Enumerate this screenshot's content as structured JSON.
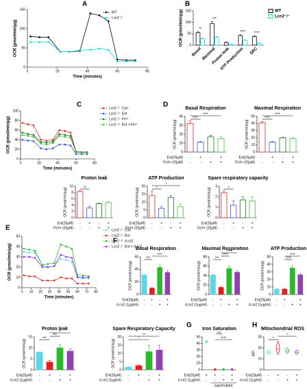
{
  "chart_data": [
    {
      "type": "line",
      "panel": "A",
      "xlabel": "Time (minutes)",
      "ylabel": "OCR (pmol/min/μg)",
      "xlim": [
        0,
        80
      ],
      "xticks": [
        0,
        20,
        40,
        60,
        80
      ],
      "ylim": [
        0,
        150
      ],
      "yticks": [
        0,
        50,
        100,
        150
      ],
      "legend": "upper right",
      "x": [
        2,
        8,
        14,
        22,
        28,
        35,
        42,
        48,
        54,
        60,
        66,
        72
      ],
      "series": [
        {
          "name": "WT",
          "color": "#000000",
          "values": [
            80,
            78,
            78,
            40,
            40,
            42,
            140,
            135,
            120,
            20,
            18,
            18
          ]
        },
        {
          "name": "Lcn2⁻/⁻",
          "color": "#00d8e8",
          "values": [
            65,
            65,
            66,
            40,
            40,
            44,
            45,
            48,
            45,
            15,
            15,
            15
          ]
        }
      ]
    },
    {
      "type": "bar",
      "panel": "B",
      "ylabel": "OCR (pmol/min/μg)",
      "ylim": [
        0,
        150
      ],
      "yticks": [
        0,
        50,
        100,
        150
      ],
      "legend": "upper right",
      "bar_style": "outline",
      "categories": [
        "Basal",
        "Maximal",
        "Proton leak",
        "ATP Production",
        "SRC"
      ],
      "series": [
        {
          "name": "WT",
          "color": "#000000",
          "values": [
            55,
            95,
            12,
            42,
            38
          ],
          "errors": [
            5,
            8,
            2,
            4,
            4
          ]
        },
        {
          "name": "Lcn2⁻/⁻",
          "color": "#00d8e8",
          "values": [
            28,
            35,
            5,
            22,
            8
          ],
          "errors": [
            3,
            3,
            1,
            2,
            2
          ]
        }
      ],
      "annotations": [
        "**",
        "***",
        "****",
        "****"
      ]
    },
    {
      "type": "line",
      "panel": "C",
      "xlabel": "Time (minutes)",
      "ylabel": "OCR (pmol/min/μg)",
      "xlim": [
        0,
        80
      ],
      "xticks": [
        0,
        20,
        40,
        60,
        80
      ],
      "ylim": [
        0,
        100
      ],
      "yticks": [
        0,
        20,
        40,
        60,
        80,
        100
      ],
      "legend": "right",
      "x": [
        2,
        8,
        14,
        22,
        28,
        35,
        42,
        48,
        54,
        60,
        66,
        72
      ],
      "series": [
        {
          "name": "Lcn2⁻/⁻ Con",
          "color": "#e02020",
          "values": [
            75,
            72,
            70,
            40,
            38,
            40,
            60,
            58,
            55,
            15,
            14,
            14
          ]
        },
        {
          "name": "Lcn2⁻/⁻ Ent",
          "color": "#3a4fd8",
          "values": [
            40,
            38,
            37,
            22,
            20,
            22,
            30,
            30,
            28,
            10,
            10,
            10
          ]
        },
        {
          "name": "Lcn2⁻/⁻ Fe³⁺",
          "color": "#1e6b1e",
          "values": [
            55,
            52,
            50,
            35,
            34,
            36,
            52,
            50,
            48,
            15,
            14,
            14
          ]
        },
        {
          "name": "Lcn2⁻/⁻ Ent + Fe³⁺",
          "color": "#3cc03c",
          "values": [
            50,
            48,
            46,
            32,
            30,
            33,
            48,
            46,
            44,
            14,
            13,
            13
          ]
        }
      ]
    },
    {
      "type": "bar",
      "panel": "D",
      "title": "Basal Respiration",
      "ylabel": "OCR (pmol/min/μg)",
      "ylim": [
        0,
        40
      ],
      "yticks": [
        0,
        10,
        20,
        30,
        40
      ],
      "bar_style": "outline",
      "values": [
        32,
        11,
        17,
        15
      ],
      "errors": [
        3,
        1,
        2,
        2
      ],
      "colors": [
        "#e02020",
        "#3a4fd8",
        "#1e6b1e",
        "#3cc03c"
      ],
      "conditions": [
        {
          "label": "Ent(25μM)",
          "marks": [
            "-",
            "+",
            "-",
            "+"
          ]
        },
        {
          "label": "Fe3+ (25μM)",
          "marks": [
            "-",
            "-",
            "+",
            "+"
          ]
        }
      ],
      "annotations": [
        "****",
        "****"
      ]
    },
    {
      "type": "bar",
      "title": "Maximal Respiration",
      "ylabel": "OCR (pmol/min/μg)",
      "ylim": [
        0,
        50
      ],
      "yticks": [
        0,
        10,
        20,
        30,
        40,
        50
      ],
      "bar_style": "outline",
      "values": [
        41,
        14,
        20,
        19
      ],
      "errors": [
        2,
        1,
        1,
        1
      ],
      "colors": [
        "#e02020",
        "#3a4fd8",
        "#1e6b1e",
        "#3cc03c"
      ],
      "conditions": [
        {
          "label": "Ent(25μM)",
          "marks": [
            "-",
            "+",
            "-",
            "+"
          ]
        },
        {
          "label": "Fe3+ (25μM)",
          "marks": [
            "-",
            "-",
            "+",
            "+"
          ]
        }
      ],
      "annotations": [
        "****",
        "****"
      ]
    },
    {
      "type": "bar",
      "title": "Proton leak",
      "ylabel": "OCR (pmol/min/μg)",
      "ylim": [
        0,
        10
      ],
      "yticks": [
        0,
        2,
        4,
        6,
        8,
        10
      ],
      "bar_style": "outline",
      "values": [
        8.3,
        3.1,
        4.5,
        4.8
      ],
      "errors": [
        0.4,
        0.6,
        0.2,
        0.3
      ],
      "colors": [
        "#e02020",
        "#3a4fd8",
        "#1e6b1e",
        "#3cc03c"
      ],
      "conditions": [
        {
          "label": "Ent(25μM)",
          "marks": [
            "-",
            "+",
            "-",
            "+"
          ]
        },
        {
          "label": "Fe3+ (25μM)",
          "marks": [
            "-",
            "-",
            "+",
            "+"
          ]
        }
      ],
      "annotations": [
        "**"
      ]
    },
    {
      "type": "bar",
      "title": "ATP Production",
      "ylabel": "OCR (pmol/min/μg)",
      "ylim": [
        0,
        20
      ],
      "yticks": [
        0,
        5,
        10,
        15,
        20
      ],
      "bar_style": "outline",
      "values": [
        14,
        6,
        13,
        7
      ],
      "errors": [
        3,
        1,
        1,
        2
      ],
      "colors": [
        "#e02020",
        "#3a4fd8",
        "#1e6b1e",
        "#3cc03c"
      ],
      "conditions": [
        {
          "label": "Ent(25μM)",
          "marks": [
            "-",
            "+",
            "-",
            "+"
          ]
        },
        {
          "label": "Fe3+ (25μM)",
          "marks": [
            "-",
            "-",
            "+",
            "+"
          ]
        }
      ],
      "annotations": [
        "*",
        "*"
      ]
    },
    {
      "type": "bar",
      "title": "Spare respiratory capacity",
      "ylabel": "OCR (pmol/min/μg)",
      "ylim": [
        0,
        3
      ],
      "yticks": [
        0,
        1,
        2,
        3
      ],
      "bar_style": "outline",
      "values": [
        2.4,
        1.2,
        1.7,
        1.6
      ],
      "errors": [
        0.2,
        0.4,
        0.3,
        0.4
      ],
      "colors": [
        "#e02020",
        "#3a4fd8",
        "#1e6b1e",
        "#3cc03c"
      ],
      "conditions": [
        {
          "label": "Ent(25μM)",
          "marks": [
            "-",
            "+",
            "-",
            "+"
          ]
        },
        {
          "label": "Fe3+ (25μM)",
          "marks": [
            "-",
            "-",
            "+",
            "+"
          ]
        }
      ],
      "annotations": [
        "*"
      ]
    },
    {
      "type": "line",
      "panel": "E",
      "xlabel": "Time (minutes)",
      "ylabel": "OCR (pmol/min/μg)",
      "xlim": [
        0,
        80
      ],
      "xticks": [
        0,
        10,
        20,
        30,
        40,
        50,
        60,
        70,
        80
      ],
      "ylim": [
        0,
        50
      ],
      "yticks": [
        0,
        10,
        20,
        30,
        40,
        50
      ],
      "legend": "right",
      "x": [
        2,
        8,
        14,
        22,
        28,
        35,
        42,
        48,
        54,
        60,
        66,
        72
      ],
      "series": [
        {
          "name": "Lcn2⁻/⁻ Con",
          "color": "#5ad8e8",
          "values": [
            35,
            34,
            34,
            22,
            20,
            21,
            28,
            27,
            25,
            10,
            9,
            9
          ]
        },
        {
          "name": "Lcn2⁻/⁻ Ent",
          "color": "#e02020",
          "values": [
            12,
            11,
            11,
            7,
            7,
            7,
            10,
            9,
            9,
            4,
            4,
            4
          ]
        },
        {
          "name": "Lcn2⁻/⁻ rLcn2",
          "color": "#2eb82e",
          "values": [
            38,
            37,
            36,
            22,
            23,
            24,
            42,
            40,
            38,
            12,
            12,
            11
          ]
        },
        {
          "name": "Lcn2⁻/⁻ Ent + rLcn2",
          "color": "#8a2be2",
          "values": [
            30,
            30,
            29,
            20,
            20,
            21,
            32,
            30,
            29,
            10,
            10,
            10
          ]
        }
      ]
    },
    {
      "type": "bar",
      "panel": "F",
      "title": "Basal Respiration",
      "ylabel": "OCR (pmol/min/μg)",
      "ylim": [
        0,
        60
      ],
      "yticks": [
        0,
        20,
        40,
        60
      ],
      "bar_style": "filled",
      "values": [
        31,
        10,
        43,
        35
      ],
      "errors": [
        1,
        1,
        4,
        3
      ],
      "colors": [
        "#5ad8e8",
        "#e02020",
        "#2eb82e",
        "#8e44ad"
      ],
      "conditions": [
        {
          "label": "Ent(25μM)",
          "marks": [
            "-",
            "+",
            "-",
            "+"
          ]
        },
        {
          "label": "rLcn2 (1μg/ml)",
          "marks": [
            "-",
            "-",
            "+",
            "+"
          ]
        }
      ],
      "annotations": [
        "***",
        "****"
      ]
    },
    {
      "type": "bar",
      "title": "Maximal Respiration",
      "ylabel": "OCR (pmol/min/μg)",
      "ylim": [
        0,
        80
      ],
      "yticks": [
        0,
        20,
        40,
        60,
        80
      ],
      "bar_style": "filled",
      "values": [
        41,
        15,
        55,
        47
      ],
      "errors": [
        2,
        1,
        5,
        3
      ],
      "colors": [
        "#5ad8e8",
        "#e02020",
        "#2eb82e",
        "#8e44ad"
      ],
      "conditions": [
        {
          "label": "Ent(25μM)",
          "marks": [
            "-",
            "+",
            "-",
            "+"
          ]
        },
        {
          "label": "rLcn2 (1μg/ml)",
          "marks": [
            "-",
            "-",
            "+",
            "+"
          ]
        }
      ],
      "annotations": [
        "***",
        "****",
        "****"
      ]
    },
    {
      "type": "bar",
      "title": "ATP Production",
      "ylabel": "OCR (pmol/min/μg)",
      "ylim": [
        0,
        50
      ],
      "yticks": [
        0,
        10,
        20,
        30,
        40,
        50
      ],
      "bar_style": "filled",
      "values": [
        7,
        7,
        35,
        26
      ],
      "errors": [
        1,
        1,
        3,
        2
      ],
      "colors": [
        "#5ad8e8",
        "#e02020",
        "#2eb82e",
        "#8e44ad"
      ],
      "conditions": [
        {
          "label": "Ent(25μM)",
          "marks": [
            "-",
            "+",
            "-",
            "+"
          ]
        },
        {
          "label": "rLcn2 (1μg/ml)",
          "marks": [
            "-",
            "-",
            "+",
            "+"
          ]
        }
      ],
      "annotations": [
        "****",
        "****"
      ]
    },
    {
      "type": "bar",
      "title": "Proton leak",
      "ylabel": "OCR (pmol/min/μg)",
      "ylim": [
        0,
        15
      ],
      "yticks": [
        0,
        5,
        10,
        15
      ],
      "bar_style": "filled",
      "values": [
        8,
        3.5,
        10,
        8.5
      ],
      "errors": [
        0.3,
        0.8,
        1.5,
        1
      ],
      "colors": [
        "#5ad8e8",
        "#e02020",
        "#2eb82e",
        "#8e44ad"
      ],
      "conditions": [
        {
          "label": "Ent(25μM)",
          "marks": [
            "-",
            "+",
            "-",
            "+"
          ]
        },
        {
          "label": "rLcn2 (1μg/ml)",
          "marks": [
            "-",
            "-",
            "+",
            "+"
          ]
        }
      ],
      "annotations": [
        "***",
        "***",
        "**"
      ]
    },
    {
      "type": "bar",
      "title": "Spare Respiratory Capacity",
      "ylabel": "OCR (pmol/min/μg)",
      "ylim": [
        0,
        20
      ],
      "yticks": [
        0,
        5,
        10,
        15,
        20
      ],
      "bar_style": "filled",
      "values": [
        1.5,
        2.5,
        11,
        12
      ],
      "errors": [
        0.3,
        0.5,
        4,
        3
      ],
      "colors": [
        "#5ad8e8",
        "#e02020",
        "#2eb82e",
        "#8e44ad"
      ],
      "conditions": [
        {
          "label": "Ent(25μM)",
          "marks": [
            "-",
            "+",
            "-",
            "+"
          ]
        },
        {
          "label": "rLcn2 (1μg/ml)",
          "marks": [
            "-",
            "-",
            "+",
            "+"
          ]
        }
      ],
      "annotations": [
        "*",
        "**"
      ]
    },
    {
      "type": "dot",
      "panel": "G",
      "title": "Iron Saturation",
      "subtitle": "(%)",
      "note": "supernatant",
      "ylim": [
        0,
        50
      ],
      "yticks": [
        0,
        10,
        20,
        30,
        40,
        50
      ],
      "values": [
        43,
        0.5,
        0.5,
        0.5
      ],
      "colors": [
        "#5ad8e8",
        "#e02020",
        "#2eb82e",
        "#8e44ad"
      ],
      "conditions": [
        {
          "label": "Ent(25μM)",
          "marks": [
            "+",
            "+",
            "-",
            "+"
          ]
        },
        {
          "label": "rLcn2 (1μg/ml)",
          "marks": [
            "-",
            "-",
            "+",
            "+"
          ]
        }
      ],
      "annotations": [
        "****"
      ]
    },
    {
      "type": "violin",
      "panel": "H",
      "title": "Mitochondrial ROS",
      "ylabel": "MFI",
      "ylim": [
        0,
        30
      ],
      "yticks": [
        0,
        10,
        20,
        30
      ],
      "values": [
        16,
        19,
        17,
        16
      ],
      "mins": [
        14,
        14,
        15,
        14
      ],
      "maxs": [
        18,
        26,
        20,
        18
      ],
      "colors": [
        "#5ad8e8",
        "#e02020",
        "#2eb82e",
        "#8e44ad"
      ],
      "conditions": [
        {
          "label": "Ent(25μM)",
          "marks": [
            "-",
            "+",
            "-",
            "+"
          ]
        },
        {
          "label": "rLcn2 (1μg/ml)",
          "marks": [
            "-",
            "-",
            "+",
            "+"
          ]
        }
      ],
      "annotations": [
        "*",
        "*"
      ]
    }
  ]
}
